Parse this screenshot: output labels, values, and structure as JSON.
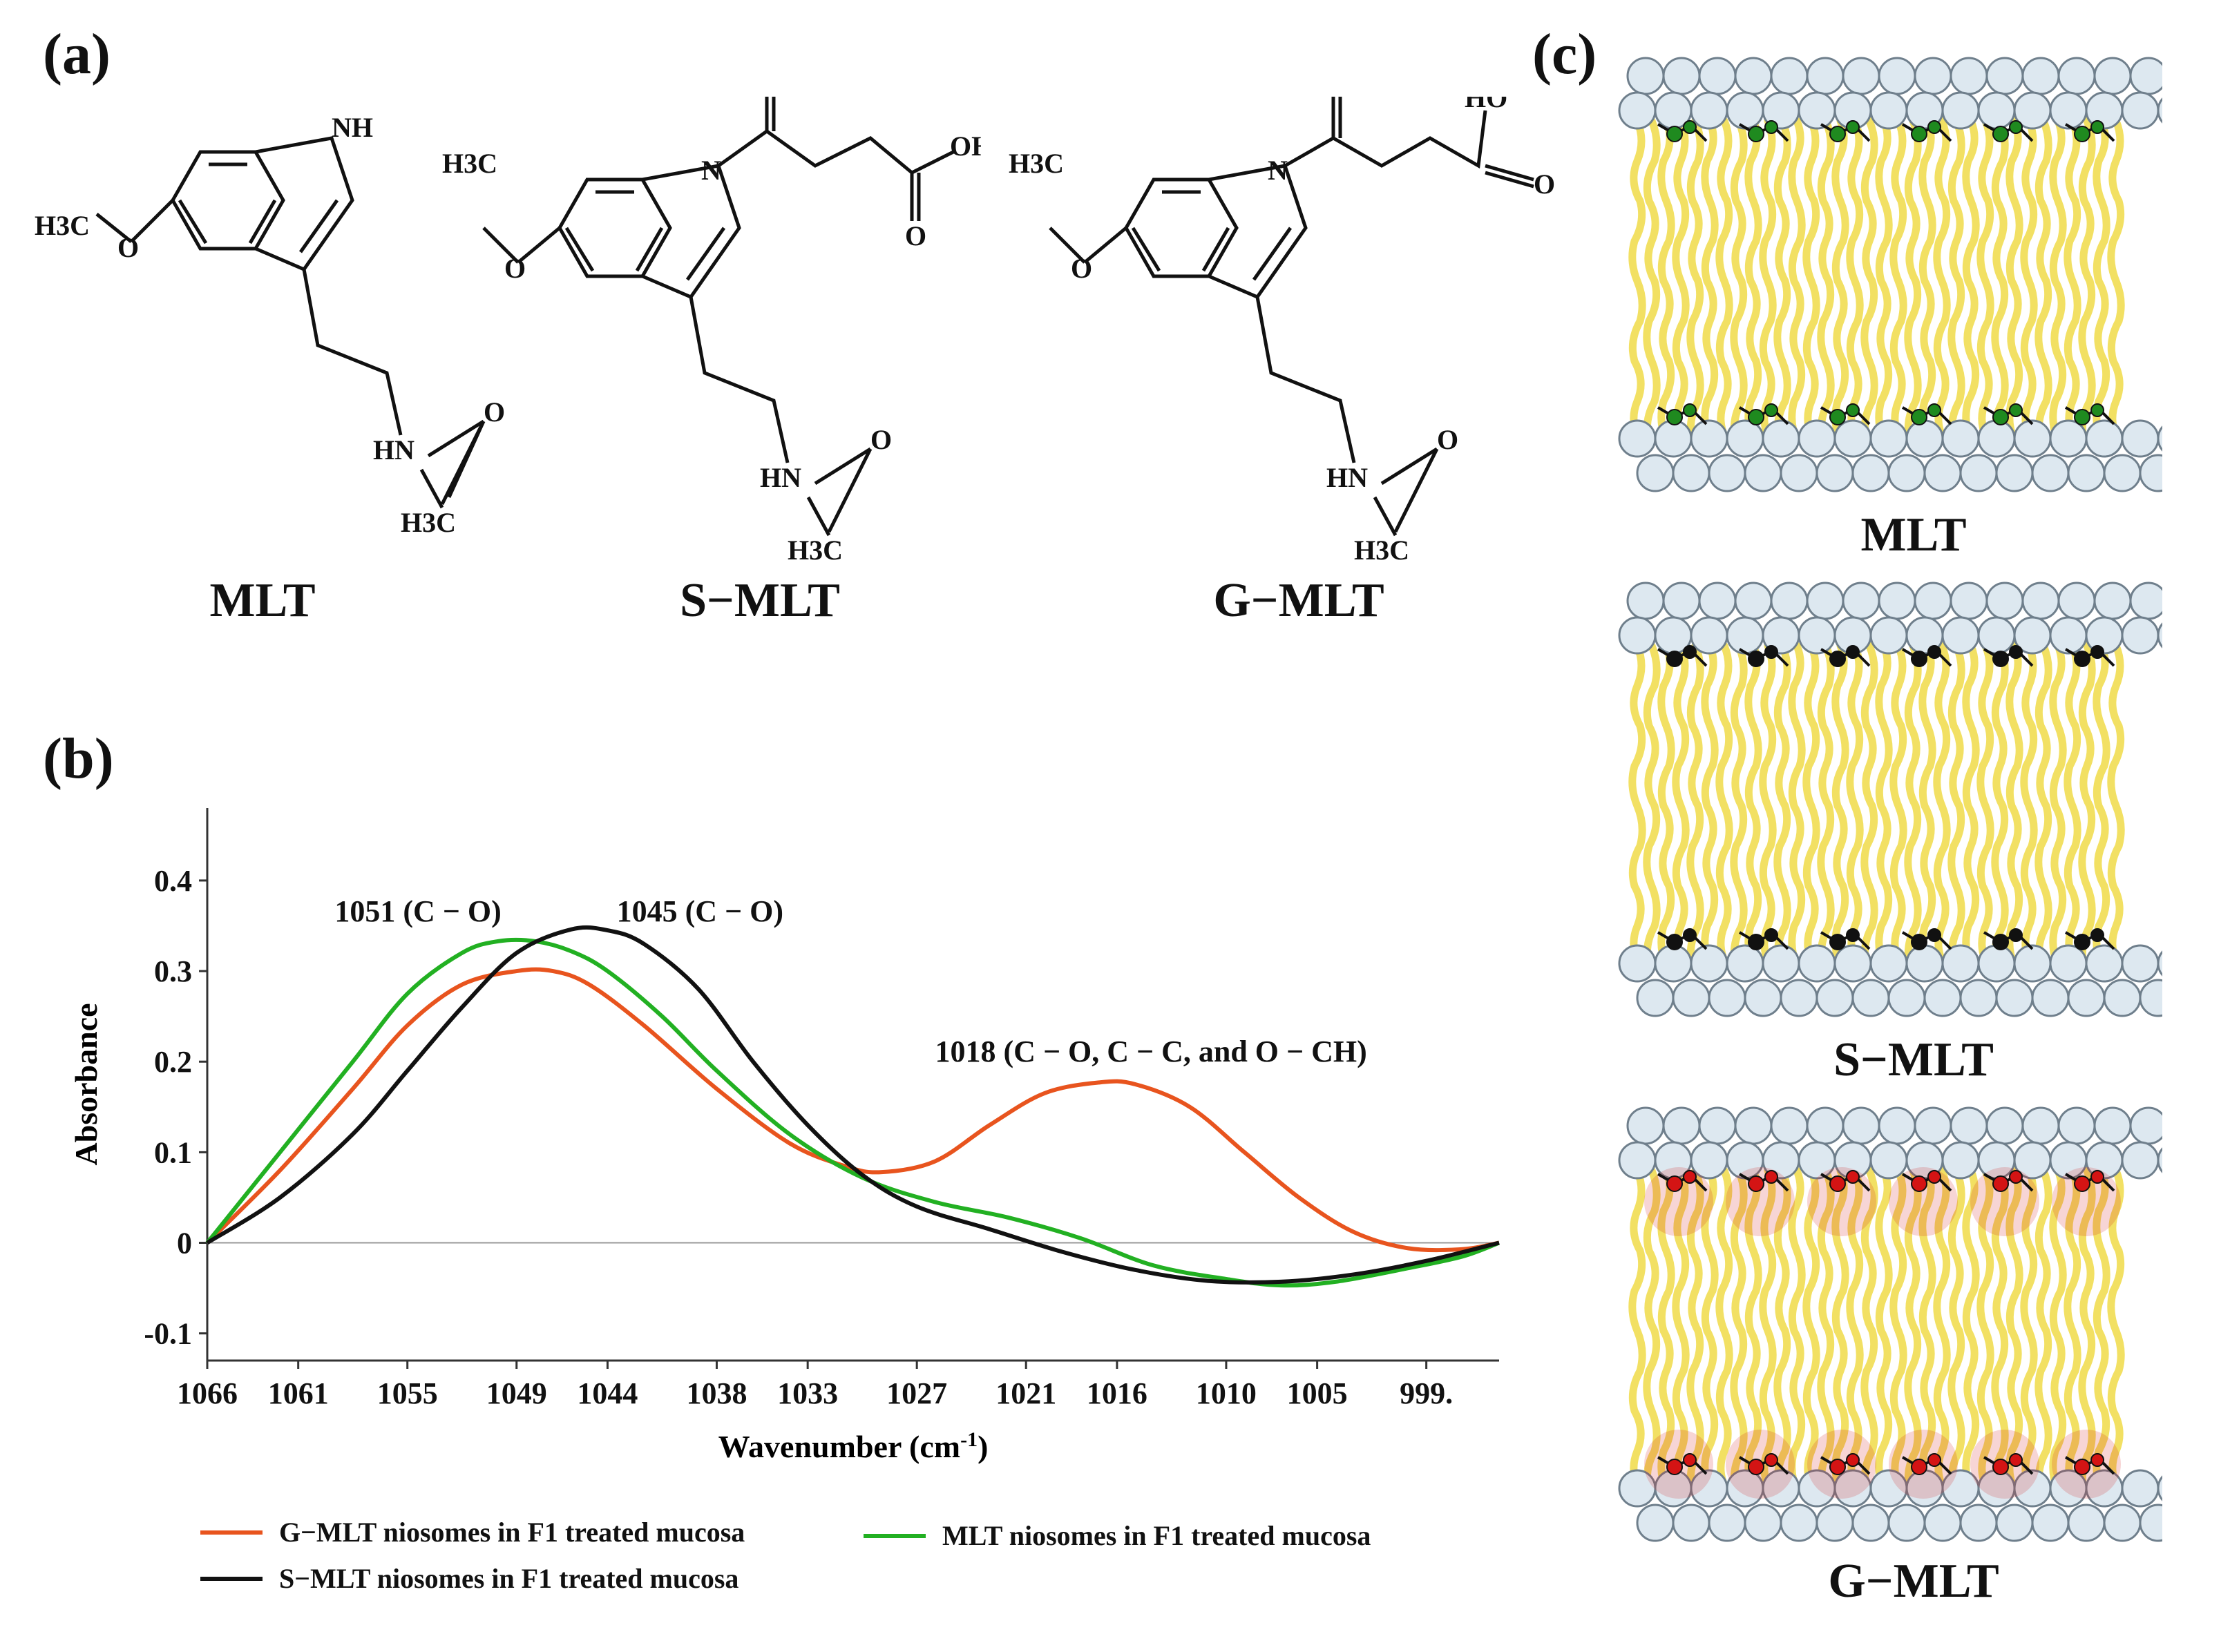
{
  "panels": {
    "a": "(a)",
    "b": "(b)",
    "c": "(c)"
  },
  "molecules": [
    {
      "name": "MLT",
      "atoms": {
        "nh": "NH",
        "hn": "HN",
        "o": "O",
        "h3c_a": "H3C",
        "h3c_b": "H3C"
      }
    },
    {
      "name": "S−MLT",
      "atoms": {
        "n": "N",
        "hn": "HN",
        "o": "O",
        "oh": "OH",
        "h3c_a": "H3C",
        "h3c_b": "H3C"
      }
    },
    {
      "name": "G−MLT",
      "atoms": {
        "n": "N",
        "hn": "HN",
        "o": "O",
        "ho": "HO",
        "h3c_a": "H3C",
        "h3c_b": "H3C"
      }
    }
  ],
  "bilayers": [
    {
      "name": "MLT",
      "drug_color": "#1f8a1f"
    },
    {
      "name": "S−MLT",
      "drug_color": "#111111"
    },
    {
      "name": "G−MLT",
      "drug_color": "#d41414"
    }
  ],
  "chart_data": {
    "type": "line",
    "title": "",
    "xlabel": "Wavenumber (cm",
    "xlabel_sup": "-1",
    "xlabel_end": ")",
    "ylabel": "Absorbance",
    "xlim": [
      1066,
      995
    ],
    "ylim": [
      -0.13,
      0.48
    ],
    "x_ticks": [
      1066,
      1061,
      1055,
      1049,
      1044,
      1038,
      1033,
      1027,
      1021,
      1016,
      1010,
      1005,
      999
    ],
    "x_tick_labels": [
      "1066",
      "1061",
      "1055",
      "1049",
      "1044",
      "1038",
      "1033",
      "1027",
      "1021",
      "1016",
      "1010",
      "1005",
      "999."
    ],
    "y_ticks": [
      -0.1,
      0,
      0.1,
      0.2,
      0.3,
      0.4
    ],
    "y_tick_labels": [
      "-0.1",
      "0",
      "0.1",
      "0.2",
      "0.3",
      "0.4"
    ],
    "series": [
      {
        "name": "G−MLT  niosomes in F1 treated mucosa",
        "color": "#e8541e",
        "x": [
          1066,
          1062,
          1058,
          1055,
          1052,
          1049,
          1047,
          1045,
          1042,
          1038,
          1034,
          1031,
          1029,
          1026,
          1023,
          1020,
          1017,
          1015,
          1012,
          1009,
          1006,
          1003,
          1000,
          997,
          995
        ],
        "y": [
          0,
          0.08,
          0.17,
          0.24,
          0.285,
          0.3,
          0.3,
          0.285,
          0.24,
          0.17,
          0.11,
          0.085,
          0.078,
          0.09,
          0.13,
          0.165,
          0.177,
          0.175,
          0.15,
          0.1,
          0.05,
          0.012,
          -0.006,
          -0.007,
          0
        ]
      },
      {
        "name": "MLT  niosomes in F1 treated mucosa",
        "color": "#22b022",
        "x": [
          1066,
          1062,
          1058,
          1055,
          1052,
          1050,
          1048,
          1046,
          1044,
          1041,
          1038,
          1034,
          1030,
          1026,
          1022,
          1018,
          1014,
          1010,
          1007,
          1004,
          1000,
          997,
          995
        ],
        "y": [
          0,
          0.1,
          0.2,
          0.275,
          0.32,
          0.333,
          0.333,
          0.322,
          0.3,
          0.25,
          0.19,
          0.12,
          0.072,
          0.045,
          0.028,
          0.005,
          -0.025,
          -0.04,
          -0.047,
          -0.043,
          -0.028,
          -0.015,
          0
        ]
      },
      {
        "name": "S−MLT  niosomes in F1 treated mucosa",
        "color": "#111111",
        "x": [
          1066,
          1062,
          1058,
          1055,
          1052,
          1049,
          1046,
          1044,
          1042,
          1039,
          1036,
          1033,
          1030,
          1027,
          1023,
          1019,
          1015,
          1011,
          1007,
          1003,
          999,
          995
        ],
        "y": [
          0,
          0.05,
          0.12,
          0.19,
          0.26,
          0.32,
          0.346,
          0.345,
          0.33,
          0.28,
          0.2,
          0.13,
          0.075,
          0.04,
          0.015,
          -0.01,
          -0.03,
          -0.042,
          -0.043,
          -0.035,
          -0.02,
          0
        ]
      }
    ],
    "annotations": [
      {
        "text": "1051 (C − O)",
        "x": 1059,
        "y": 0.355
      },
      {
        "text": "1045 (C − O)",
        "x": 1043.5,
        "y": 0.355
      },
      {
        "text": "1018 (C − O, C − C, and O − CH)",
        "x": 1026,
        "y": 0.2
      }
    ],
    "zero_line": true,
    "legend_position": "bottom"
  }
}
